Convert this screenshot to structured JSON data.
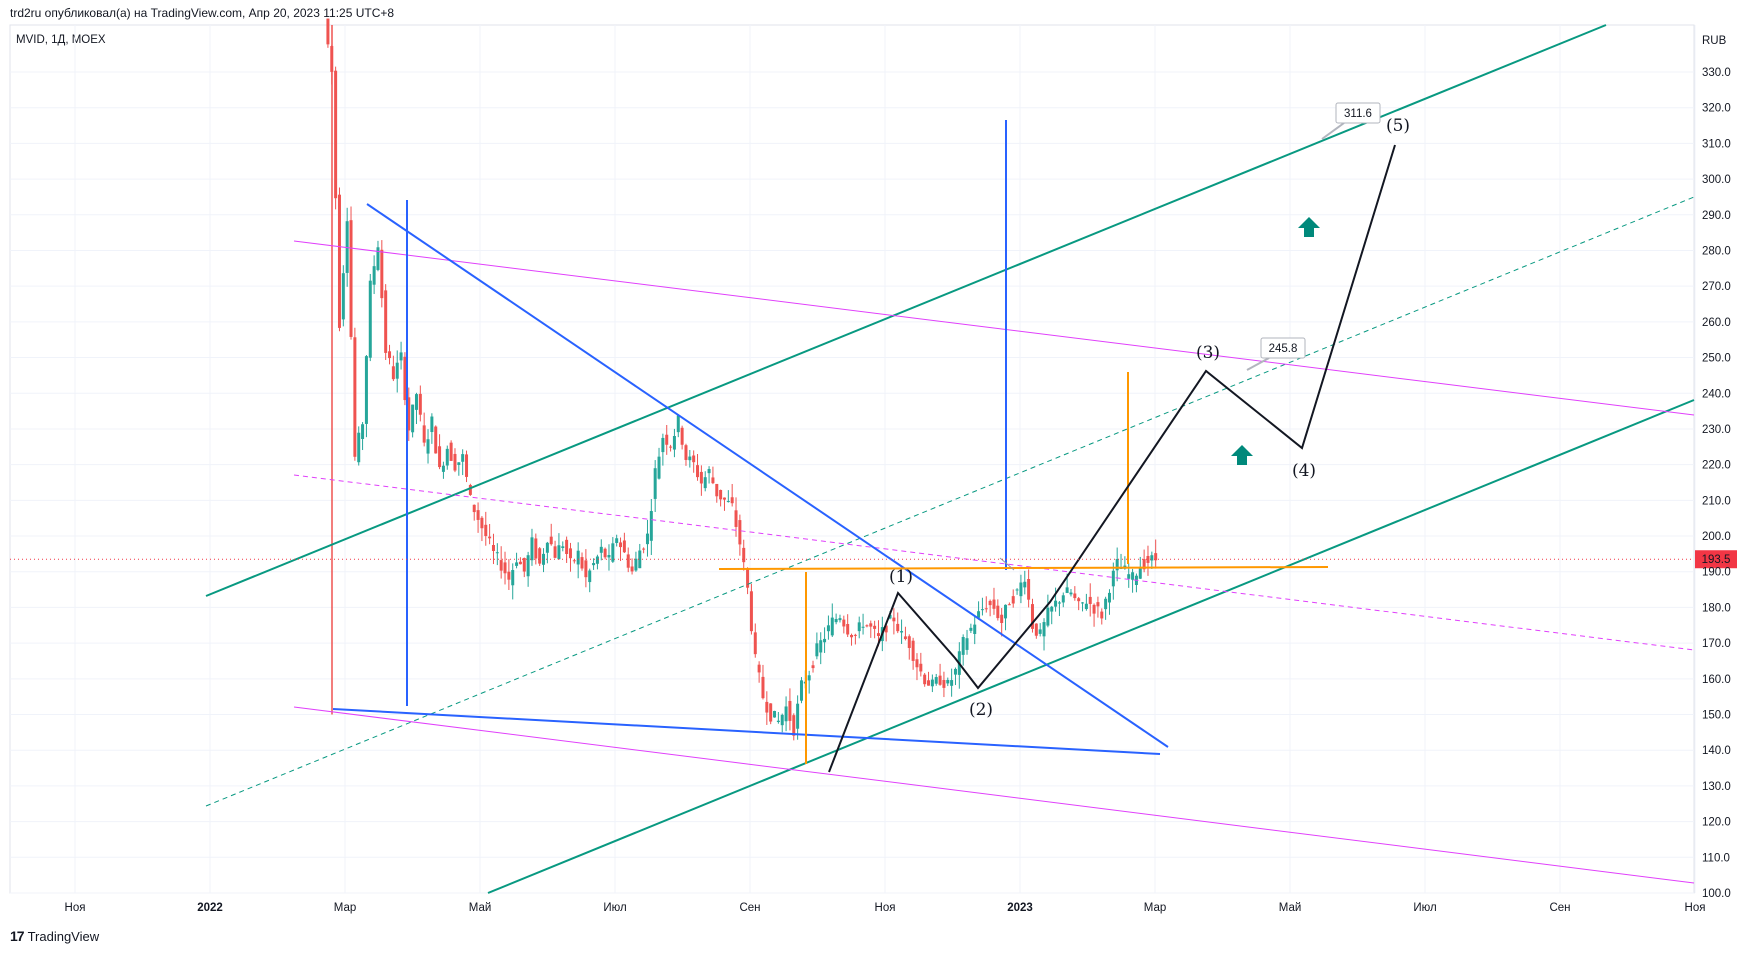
{
  "header": {
    "publisher": "trd2ru опубликовал(а) на TradingView.com, Апр 20, 2023 11:25 UTC+8"
  },
  "symbol": {
    "label": "MVID, 1Д, MOEX"
  },
  "footer": {
    "brand": "TradingView"
  },
  "colors": {
    "up": "#26a69a",
    "down": "#ef5350",
    "green_line": "#089981",
    "blue_line": "#2962ff",
    "magenta_line": "#e040fb",
    "orange_line": "#ff9800",
    "price_tag": "#f23645"
  },
  "chart_data": {
    "type": "candlestick",
    "currency": "RUB",
    "y_range": [
      100,
      333
    ],
    "y_ticks": [
      "330.0",
      "320.0",
      "310.0",
      "300.0",
      "290.0",
      "280.0",
      "270.0",
      "260.0",
      "250.0",
      "240.0",
      "230.0",
      "220.0",
      "210.0",
      "200.0",
      "190.0",
      "180.0",
      "170.0",
      "160.0",
      "150.0",
      "140.0",
      "130.0",
      "120.0",
      "110.0",
      "100.0"
    ],
    "x_ticks": [
      {
        "label": "Ноя",
        "bold": false
      },
      {
        "label": "2022",
        "bold": true
      },
      {
        "label": "Мар",
        "bold": false
      },
      {
        "label": "Май",
        "bold": false
      },
      {
        "label": "Июл",
        "bold": false
      },
      {
        "label": "Сен",
        "bold": false
      },
      {
        "label": "Ноя",
        "bold": false
      },
      {
        "label": "2023",
        "bold": true
      },
      {
        "label": "Мар",
        "bold": false
      },
      {
        "label": "Май",
        "bold": false
      },
      {
        "label": "Июл",
        "bold": false
      },
      {
        "label": "Сен",
        "bold": false
      },
      {
        "label": "Ноя",
        "bold": false
      }
    ],
    "last_price": "193.5",
    "price_path": [
      [
        0,
        345
      ],
      [
        2,
        330
      ],
      [
        4,
        260
      ],
      [
        6,
        290
      ],
      [
        8,
        222
      ],
      [
        10,
        232
      ],
      [
        12,
        270
      ],
      [
        14,
        282
      ],
      [
        16,
        252
      ],
      [
        18,
        245
      ],
      [
        20,
        250
      ],
      [
        22,
        230
      ],
      [
        24,
        240
      ],
      [
        26,
        225
      ],
      [
        28,
        232
      ],
      [
        30,
        218
      ],
      [
        32,
        225
      ],
      [
        34,
        220
      ],
      [
        36,
        222
      ],
      [
        38,
        210
      ],
      [
        40,
        205
      ],
      [
        42,
        200
      ],
      [
        44,
        195
      ],
      [
        46,
        192
      ],
      [
        48,
        188
      ],
      [
        50,
        194
      ],
      [
        52,
        190
      ],
      [
        54,
        198
      ],
      [
        56,
        192
      ],
      [
        58,
        200
      ],
      [
        60,
        195
      ],
      [
        62,
        198
      ],
      [
        64,
        192
      ],
      [
        66,
        195
      ],
      [
        68,
        188
      ],
      [
        70,
        192
      ],
      [
        72,
        196
      ],
      [
        74,
        193
      ],
      [
        76,
        200
      ],
      [
        78,
        195
      ],
      [
        80,
        190
      ],
      [
        82,
        196
      ],
      [
        84,
        200
      ],
      [
        86,
        218
      ],
      [
        88,
        228
      ],
      [
        90,
        226
      ],
      [
        92,
        232
      ],
      [
        94,
        222
      ],
      [
        96,
        220
      ],
      [
        98,
        215
      ],
      [
        100,
        218
      ],
      [
        102,
        212
      ],
      [
        104,
        210
      ],
      [
        106,
        208
      ],
      [
        108,
        198
      ],
      [
        110,
        185
      ],
      [
        112,
        165
      ],
      [
        114,
        155
      ],
      [
        116,
        150
      ],
      [
        118,
        148
      ],
      [
        120,
        152
      ],
      [
        122,
        146
      ],
      [
        124,
        158
      ],
      [
        126,
        162
      ],
      [
        128,
        168
      ],
      [
        130,
        172
      ],
      [
        132,
        176
      ],
      [
        134,
        178
      ],
      [
        136,
        174
      ],
      [
        138,
        172
      ],
      [
        140,
        176
      ],
      [
        142,
        174
      ],
      [
        144,
        171
      ],
      [
        146,
        175
      ],
      [
        148,
        177
      ],
      [
        150,
        172
      ],
      [
        152,
        170
      ],
      [
        154,
        164
      ],
      [
        156,
        160
      ],
      [
        158,
        158
      ],
      [
        160,
        160
      ],
      [
        162,
        158
      ],
      [
        164,
        162
      ],
      [
        166,
        170
      ],
      [
        168,
        174
      ],
      [
        170,
        178
      ],
      [
        172,
        181
      ],
      [
        174,
        180
      ],
      [
        176,
        176
      ],
      [
        178,
        182
      ],
      [
        180,
        184
      ],
      [
        182,
        189
      ],
      [
        184,
        175
      ],
      [
        186,
        172
      ],
      [
        188,
        178
      ],
      [
        190,
        181
      ],
      [
        192,
        184
      ],
      [
        194,
        184
      ],
      [
        196,
        180
      ],
      [
        198,
        182
      ],
      [
        200,
        180
      ],
      [
        202,
        178
      ],
      [
        204,
        186
      ],
      [
        206,
        192
      ],
      [
        208,
        190
      ],
      [
        210,
        188
      ],
      [
        212,
        192
      ],
      [
        214,
        193
      ],
      [
        216,
        193.5
      ]
    ]
  },
  "annotations": {
    "price_labels": [
      {
        "text": "311.6"
      },
      {
        "text": "245.8"
      }
    ],
    "waves": [
      {
        "text": "(1)"
      },
      {
        "text": "(2)"
      },
      {
        "text": "(3)"
      },
      {
        "text": "(4)"
      },
      {
        "text": "(5)"
      }
    ]
  }
}
